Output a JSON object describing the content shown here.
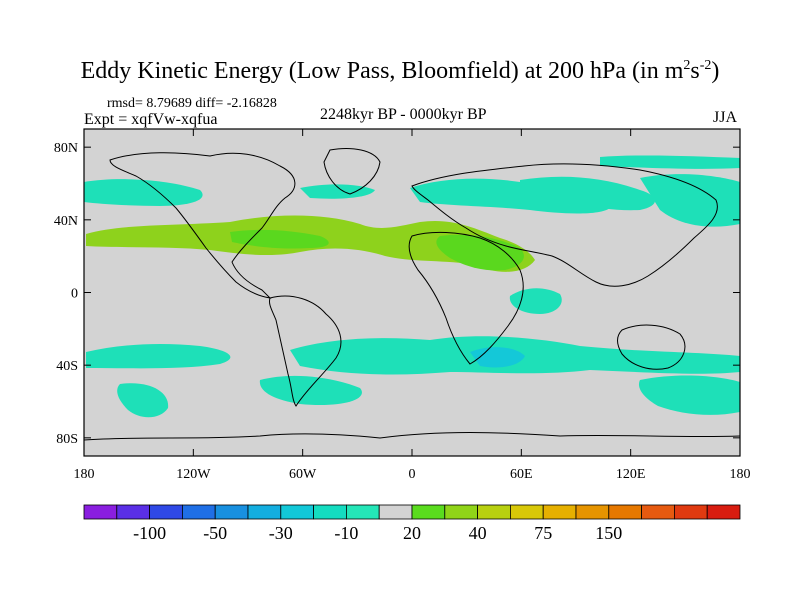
{
  "title": {
    "main": "Eddy Kinetic Energy (Low Pass, Bloomfield) at 200 hPa (in m",
    "sup1": "2",
    "mid": "s",
    "sup2": "-2",
    "close": ")"
  },
  "stats": "rmsd= 8.79689 diff= -2.16828",
  "experiment": "Expt = xqfVw-xqfua",
  "period": "2248kyr BP - 0000kyr BP",
  "season": "JJA",
  "map": {
    "lat_ticks": [
      "80N",
      "40N",
      "0",
      "40S",
      "80S"
    ],
    "lat_values": [
      80,
      40,
      0,
      -40,
      -80
    ],
    "lon_ticks": [
      "180",
      "120W",
      "60W",
      "0",
      "60E",
      "120E",
      "180"
    ],
    "lon_values": [
      -180,
      -120,
      -60,
      0,
      60,
      120,
      180
    ],
    "lat_range": [
      -90,
      90
    ],
    "lon_range": [
      -180,
      180
    ],
    "background_color": "#d3d3d3",
    "coastline_color": "#000000"
  },
  "colorbar": {
    "colors": [
      "#8a1ee0",
      "#5a2fe6",
      "#2f49e6",
      "#1f6fe6",
      "#1890e0",
      "#13aee0",
      "#12c8d8",
      "#14dcc0",
      "#24e6b8",
      "#d3d3d3",
      "#5adc1e",
      "#90d418",
      "#b8d010",
      "#d8c808",
      "#e6b000",
      "#e69400",
      "#e67800",
      "#e65a10",
      "#e03a10",
      "#d81c10"
    ],
    "labels": [
      "-100",
      "-50",
      "-30",
      "-10",
      "20",
      "40",
      "75",
      "150"
    ]
  }
}
